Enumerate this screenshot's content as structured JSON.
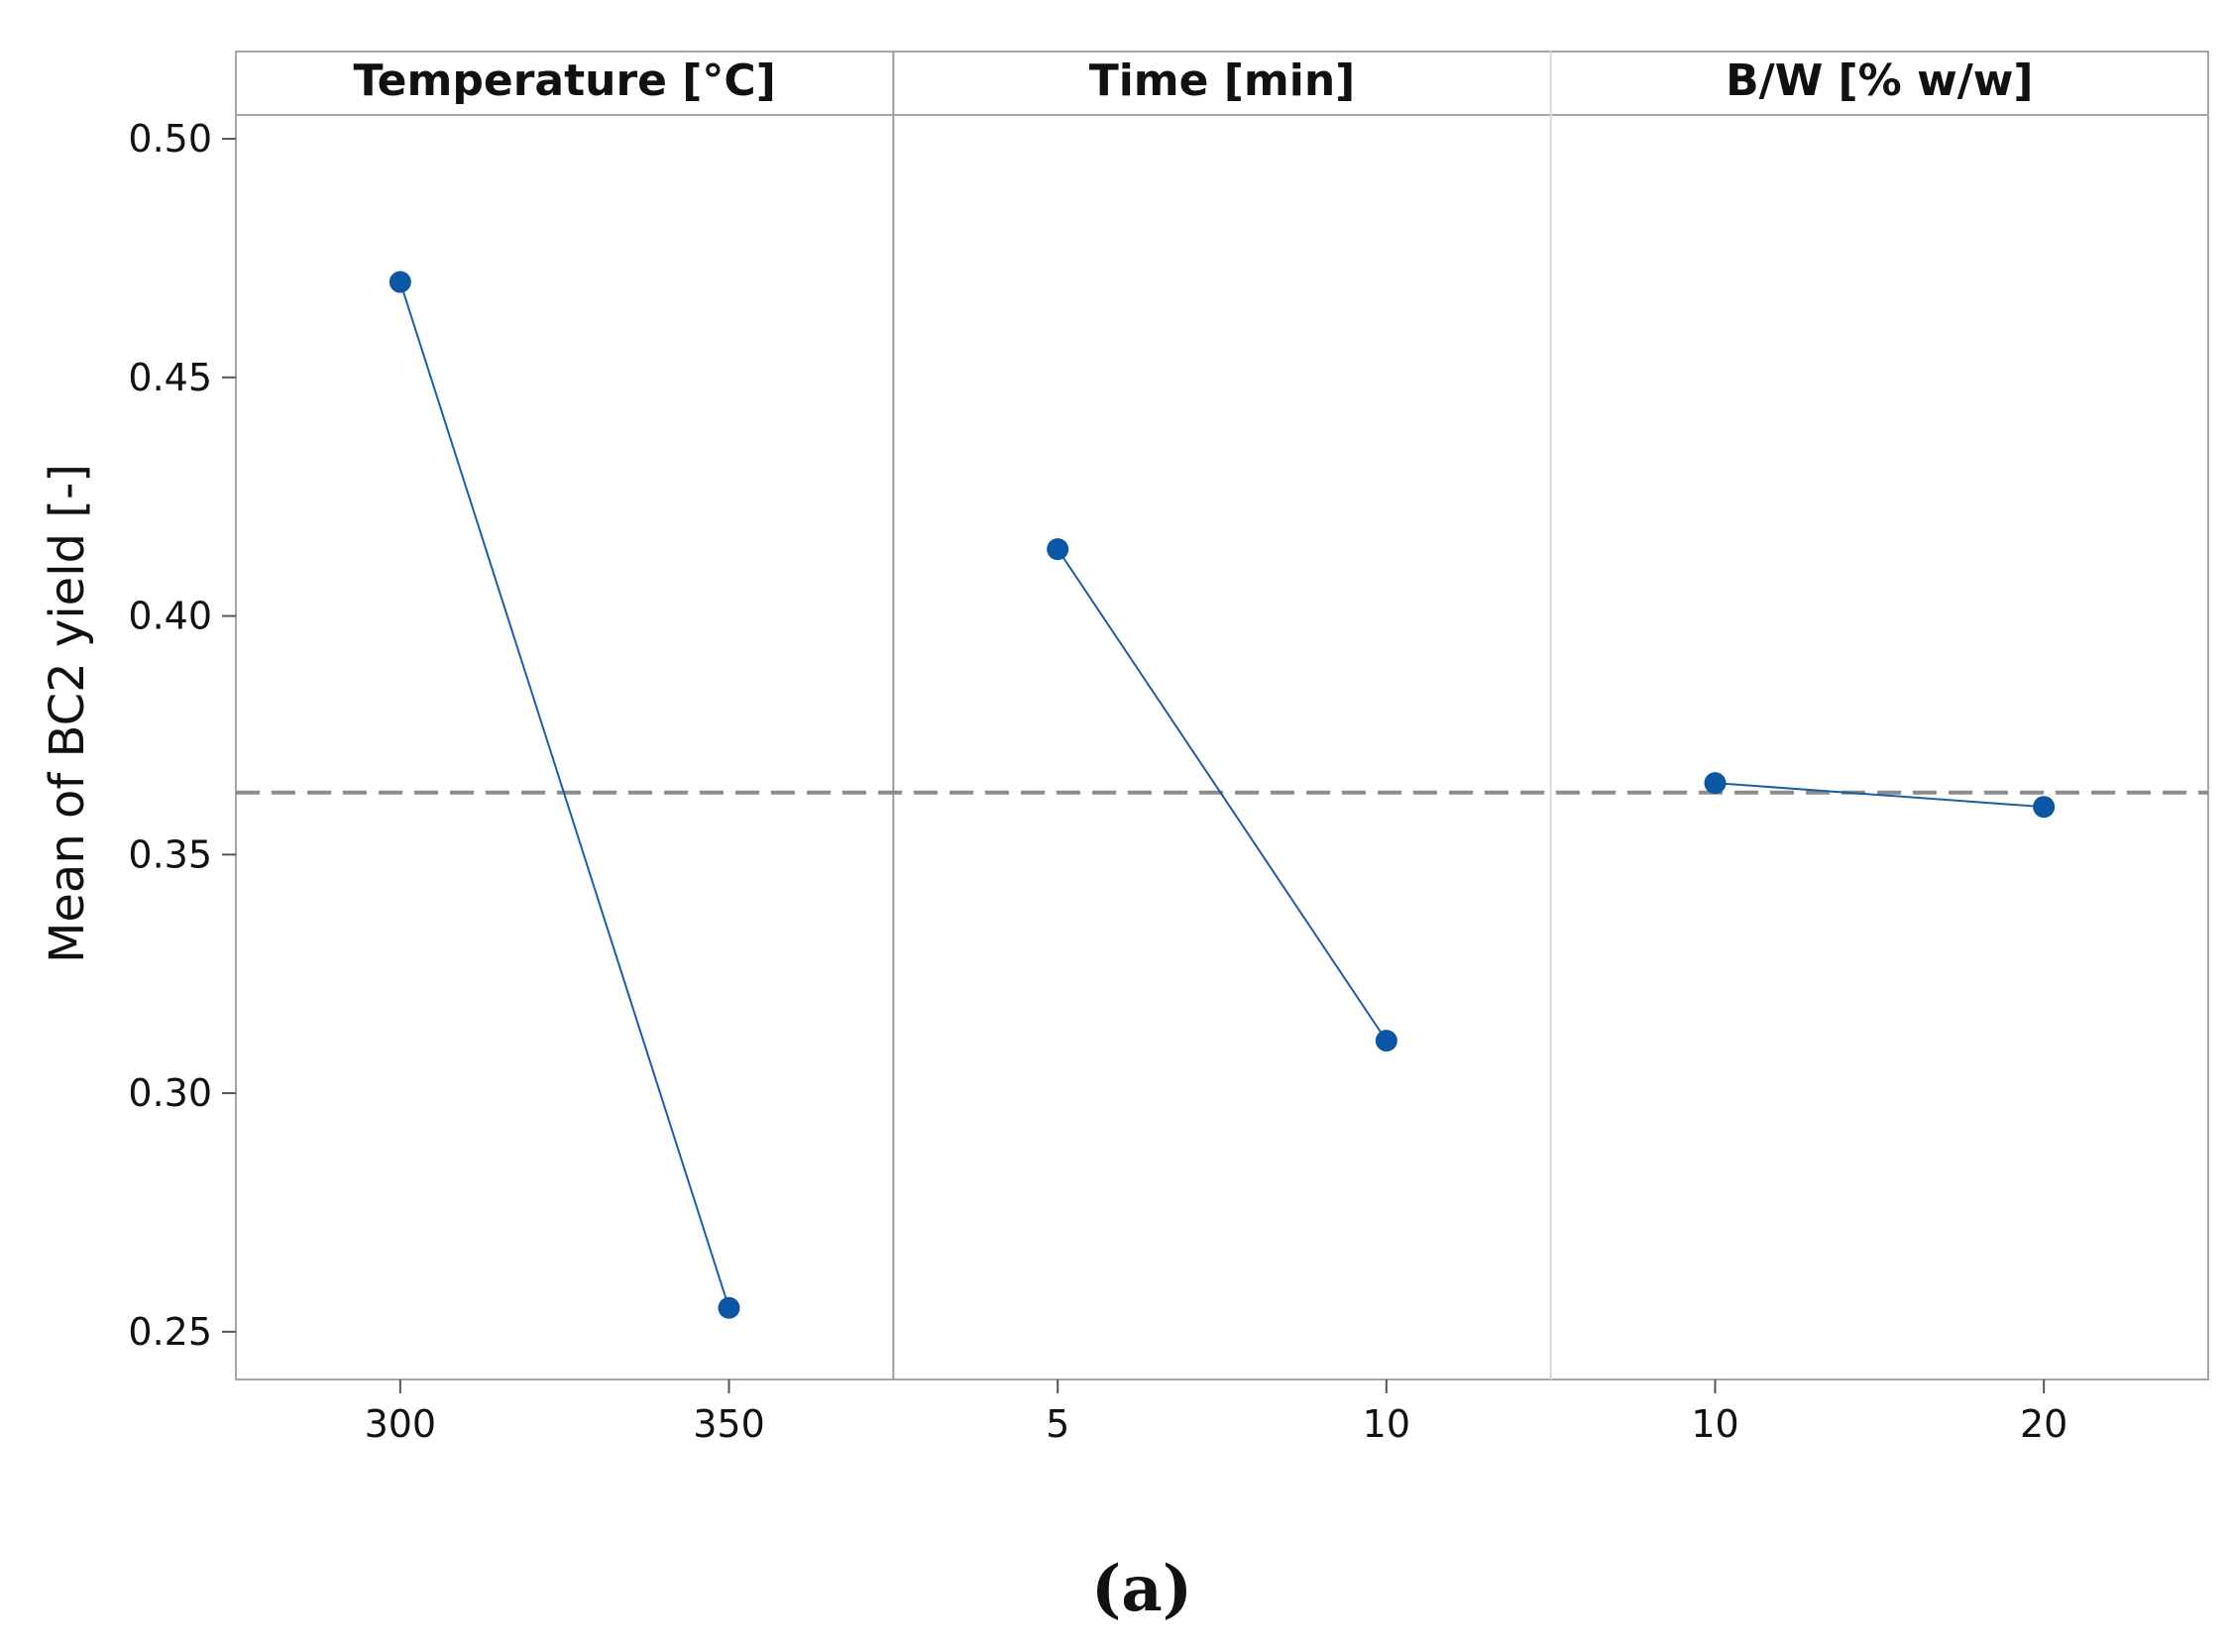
{
  "chart_data": {
    "type": "line",
    "ylabel": "Mean of BC2 yield [-]",
    "ylim": [
      0.24,
      0.505
    ],
    "yticks": [
      0.25,
      0.3,
      0.35,
      0.4,
      0.45,
      0.5
    ],
    "ytick_labels": [
      "0.25",
      "0.30",
      "0.35",
      "0.40",
      "0.45",
      "0.50"
    ],
    "reference_mean": 0.363,
    "caption": "(a)",
    "colors": {
      "series": "#1a5fa8",
      "marker": "#0b56a5",
      "reference": "#8c8c8c",
      "frame": "#a6a6a6"
    },
    "panels": [
      {
        "title": "Temperature [°C]",
        "categories": [
          "300",
          "350"
        ],
        "values": [
          0.47,
          0.255
        ]
      },
      {
        "title": "Time [min]",
        "categories": [
          "5",
          "10"
        ],
        "values": [
          0.414,
          0.311
        ]
      },
      {
        "title": "B/W [% w/w]",
        "categories": [
          "10",
          "20"
        ],
        "values": [
          0.365,
          0.36
        ]
      }
    ]
  }
}
